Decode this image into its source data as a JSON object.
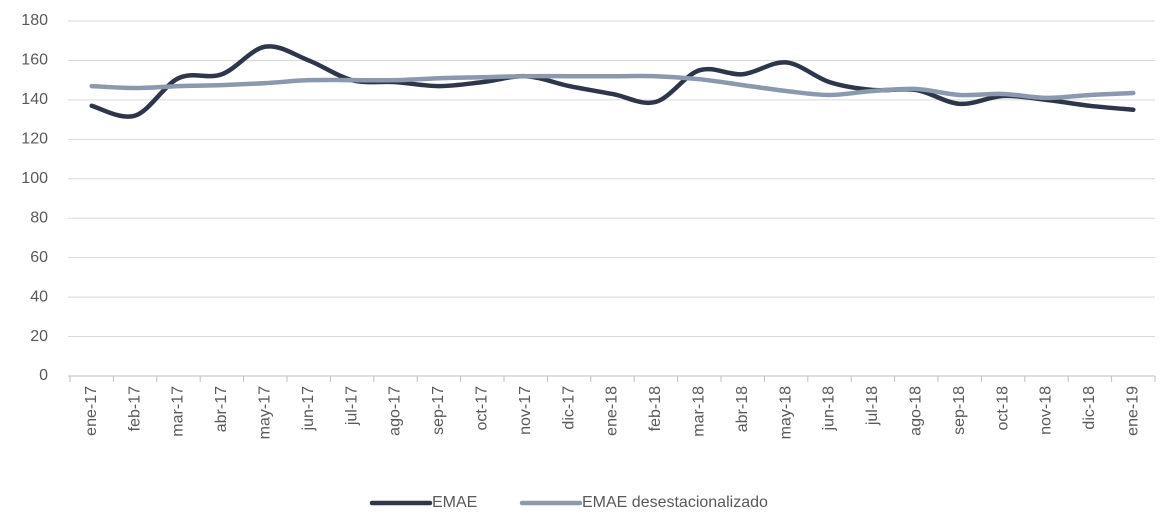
{
  "chart_data": {
    "type": "line",
    "categories": [
      "ene-17",
      "feb-17",
      "mar-17",
      "abr-17",
      "may-17",
      "jun-17",
      "jul-17",
      "ago-17",
      "sep-17",
      "oct-17",
      "nov-17",
      "dic-17",
      "ene-18",
      "feb-18",
      "mar-18",
      "abr-18",
      "may-18",
      "jun-18",
      "jul-18",
      "ago-18",
      "sep-18",
      "oct-18",
      "nov-18",
      "dic-18",
      "ene-19"
    ],
    "series": [
      {
        "name": "EMAE",
        "color": "#2e3649",
        "values": [
          137,
          132,
          151,
          153,
          167,
          160,
          150,
          149,
          147,
          149,
          152,
          147,
          143,
          139,
          155,
          153,
          159,
          149,
          145,
          145,
          138,
          142,
          140,
          137,
          135
        ]
      },
      {
        "name": "EMAE desestacionalizado",
        "color": "#8a99ae",
        "values": [
          147,
          146,
          147,
          147.5,
          148.5,
          150,
          150,
          150,
          151,
          151.5,
          152,
          152,
          152,
          152,
          150.5,
          147.5,
          144.5,
          142.5,
          144.5,
          145.5,
          142.5,
          143,
          141,
          142.5,
          143.5
        ]
      }
    ],
    "ylim": [
      0,
      180
    ],
    "yticks": [
      0,
      20,
      40,
      60,
      80,
      100,
      120,
      140,
      160,
      180
    ],
    "grid": true,
    "legend": "bottom"
  }
}
